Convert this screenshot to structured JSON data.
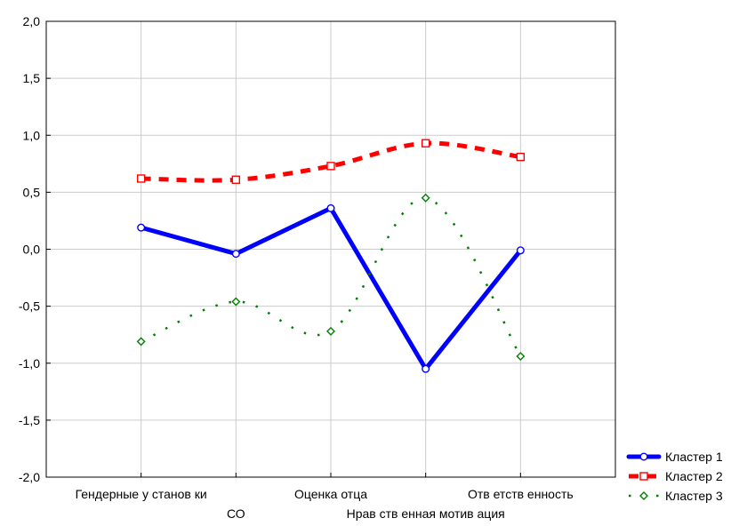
{
  "chart_data": {
    "type": "line",
    "categories": [
      "Гендерные у станов ки",
      "СО",
      "Оценка отца",
      "Нрав ств енная мотив ация",
      "Отв етств енность"
    ],
    "category_rows": [
      0,
      1,
      0,
      1,
      0
    ],
    "ylim": [
      -2.0,
      2.0
    ],
    "yticks": [
      "2,0",
      "1,5",
      "1,0",
      "0,5",
      "0,0",
      "-0,5",
      "-1,0",
      "-1,5",
      "-2,0"
    ],
    "ytick_values": [
      2.0,
      1.5,
      1.0,
      0.5,
      0.0,
      -0.5,
      -1.0,
      -1.5,
      -2.0
    ],
    "grid": true,
    "legend_position": "bottom-right",
    "series": [
      {
        "name": "Кластер  1",
        "values": [
          0.19,
          -0.04,
          0.36,
          -1.05,
          -0.01
        ],
        "color": "#0000ff",
        "style": "solid",
        "marker": "circle"
      },
      {
        "name": "Кластер  2",
        "values": [
          0.62,
          0.61,
          0.73,
          0.93,
          0.81
        ],
        "color": "#ff0000",
        "style": "dashed",
        "marker": "square"
      },
      {
        "name": "Кластер  3",
        "values": [
          -0.81,
          -0.46,
          -0.72,
          0.45,
          -0.94
        ],
        "color": "#008000",
        "style": "dotted",
        "marker": "diamond"
      }
    ]
  }
}
